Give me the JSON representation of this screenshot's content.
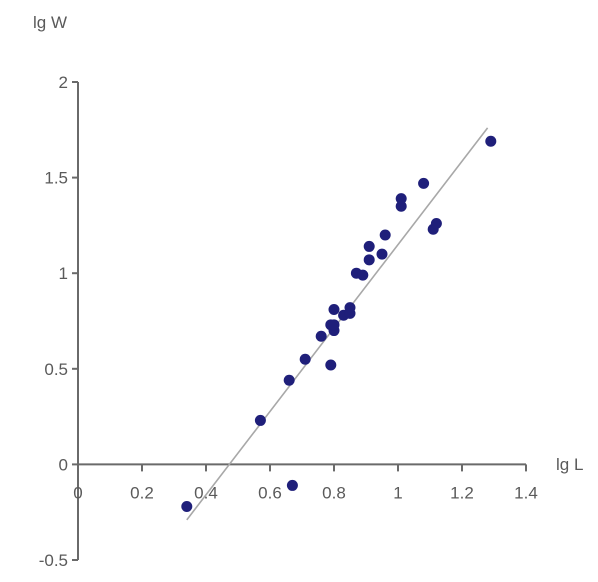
{
  "chart_data": {
    "type": "scatter",
    "title": "",
    "xlabel": "lg L",
    "ylabel": "lg W",
    "xlim": [
      0,
      1.4
    ],
    "ylim": [
      -0.5,
      2
    ],
    "x_ticks": [
      "0",
      "0.2",
      "0.4",
      "0.6",
      "0.8",
      "1",
      "1.2",
      "1.4"
    ],
    "y_ticks": [
      "-0.5",
      "0",
      "0.5",
      "1",
      "1.5",
      "2"
    ],
    "grid": false,
    "legend": "none",
    "colors": {
      "points": "#1f1f7a",
      "trendline": "#a8a8a8",
      "axis": "#6a6a6a",
      "text": "#5a5a5a"
    },
    "series": [
      {
        "points": [
          [
            0.34,
            -0.22
          ],
          [
            0.57,
            0.23
          ],
          [
            0.67,
            -0.11
          ],
          [
            0.66,
            0.44
          ],
          [
            0.71,
            0.55
          ],
          [
            0.76,
            0.67
          ],
          [
            0.79,
            0.52
          ],
          [
            0.8,
            0.7
          ],
          [
            0.79,
            0.73
          ],
          [
            0.8,
            0.73
          ],
          [
            0.8,
            0.81
          ],
          [
            0.83,
            0.78
          ],
          [
            0.85,
            0.82
          ],
          [
            0.85,
            0.79
          ],
          [
            0.87,
            1.0
          ],
          [
            0.89,
            0.99
          ],
          [
            0.91,
            1.14
          ],
          [
            0.91,
            1.07
          ],
          [
            0.95,
            1.1
          ],
          [
            0.96,
            1.2
          ],
          [
            1.01,
            1.35
          ],
          [
            1.01,
            1.39
          ],
          [
            1.08,
            1.47
          ],
          [
            1.11,
            1.23
          ],
          [
            1.12,
            1.26
          ],
          [
            1.29,
            1.69
          ]
        ]
      }
    ],
    "trendline": {
      "x": [
        0.34,
        1.28
      ],
      "y": [
        -0.29,
        1.76
      ]
    }
  }
}
